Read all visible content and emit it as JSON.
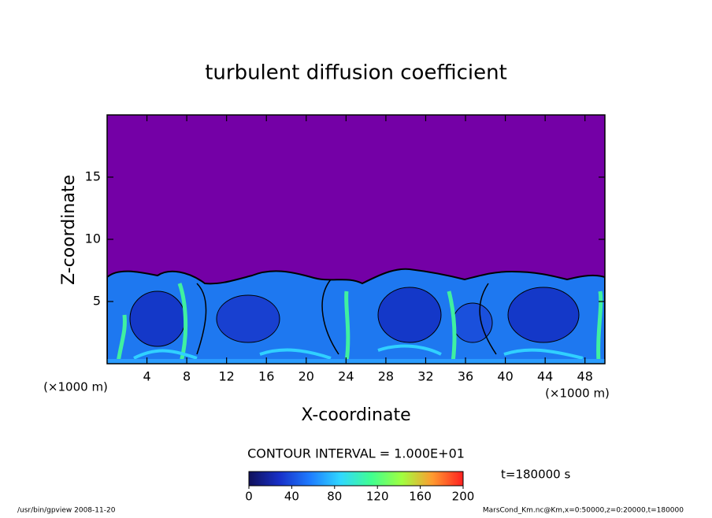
{
  "chart_data": {
    "type": "contour",
    "title": "turbulent diffusion coefficient",
    "x_label": "X-coordinate",
    "y_label": "Z-coordinate",
    "x_unit": "(×1000 m)",
    "y_unit": "(×1000 m)",
    "xlim": [
      0,
      50
    ],
    "xticks": [
      4,
      8,
      12,
      16,
      20,
      24,
      28,
      32,
      36,
      40,
      44,
      48
    ],
    "ylim": [
      0,
      20
    ],
    "yticks": [
      5,
      10,
      15
    ],
    "background_color": "#7400a6",
    "colorbar": {
      "lim": [
        0,
        200
      ],
      "ticks": [
        0,
        40,
        80,
        120,
        160,
        200
      ],
      "colors": [
        "#10105a",
        "#1830c8",
        "#1e7cff",
        "#30d8ff",
        "#40ff90",
        "#a0ff40",
        "#ff9a30",
        "#ff2020"
      ]
    },
    "contour_interval": "CONTOUR INTERVAL = 1.000E+01",
    "time_label": "t=180000 s"
  },
  "footer": {
    "left": "/usr/bin/gpview   2008-11-20",
    "right": "MarsCond_Km.nc@Km,x=0:50000,z=0:20000,t=180000"
  }
}
